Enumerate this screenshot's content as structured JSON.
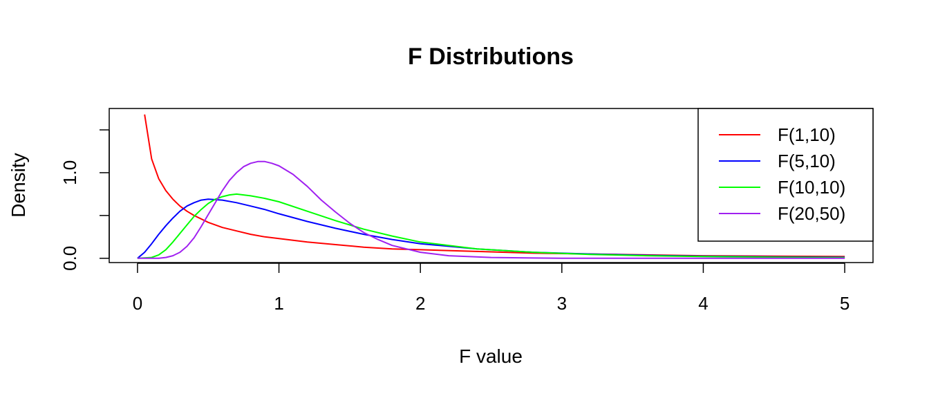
{
  "chart_data": {
    "type": "line",
    "title": "F Distributions",
    "xlabel": "F value",
    "ylabel": "Density",
    "xlim": [
      -0.2,
      5.2
    ],
    "ylim": [
      -0.05,
      1.75
    ],
    "x_ticks": [
      0,
      1,
      2,
      3,
      4,
      5
    ],
    "x_tick_labels": [
      "0",
      "1",
      "2",
      "3",
      "4",
      "5"
    ],
    "y_ticks": [
      0.0,
      0.5,
      1.0,
      1.5
    ],
    "y_tick_labels": [
      "0.0",
      "",
      "1.0",
      ""
    ],
    "grid": false,
    "legend_position": "top-right",
    "x": [
      0.05,
      0.1,
      0.15,
      0.2,
      0.25,
      0.3,
      0.35,
      0.4,
      0.45,
      0.5,
      0.6,
      0.7,
      0.8,
      0.85,
      0.9,
      1.0,
      1.1,
      1.2,
      1.3,
      1.4,
      1.5,
      1.6,
      1.7,
      1.8,
      1.9,
      2.0,
      2.2,
      2.4,
      2.6,
      2.8,
      3.0,
      3.25,
      3.5,
      3.75,
      4.0,
      4.25,
      4.5,
      4.75,
      5.0
    ],
    "series": [
      {
        "name": "F(1,10)",
        "color": "#ff0000",
        "points": [
          [
            0.05,
            1.68
          ],
          [
            0.1,
            1.16
          ],
          [
            0.15,
            0.93
          ],
          [
            0.2,
            0.79
          ],
          [
            0.25,
            0.69
          ],
          [
            0.3,
            0.61
          ],
          [
            0.35,
            0.55
          ],
          [
            0.4,
            0.5
          ],
          [
            0.45,
            0.46
          ],
          [
            0.5,
            0.42
          ],
          [
            0.6,
            0.36
          ],
          [
            0.7,
            0.32
          ],
          [
            0.8,
            0.28
          ],
          [
            0.9,
            0.25
          ],
          [
            1.0,
            0.23
          ],
          [
            1.2,
            0.19
          ],
          [
            1.4,
            0.16
          ],
          [
            1.6,
            0.13
          ],
          [
            1.8,
            0.11
          ],
          [
            2.0,
            0.1
          ],
          [
            2.4,
            0.08
          ],
          [
            2.8,
            0.06
          ],
          [
            3.2,
            0.05
          ],
          [
            3.6,
            0.04
          ],
          [
            4.0,
            0.03
          ],
          [
            4.5,
            0.025
          ],
          [
            5.0,
            0.02
          ]
        ]
      },
      {
        "name": "F(5,10)",
        "color": "#0000ff",
        "points": [
          [
            0.0,
            0.0
          ],
          [
            0.05,
            0.07
          ],
          [
            0.1,
            0.17
          ],
          [
            0.15,
            0.28
          ],
          [
            0.2,
            0.38
          ],
          [
            0.25,
            0.47
          ],
          [
            0.3,
            0.55
          ],
          [
            0.35,
            0.61
          ],
          [
            0.4,
            0.65
          ],
          [
            0.45,
            0.68
          ],
          [
            0.5,
            0.69
          ],
          [
            0.6,
            0.68
          ],
          [
            0.7,
            0.65
          ],
          [
            0.8,
            0.61
          ],
          [
            0.9,
            0.57
          ],
          [
            1.0,
            0.52
          ],
          [
            1.2,
            0.43
          ],
          [
            1.4,
            0.35
          ],
          [
            1.6,
            0.28
          ],
          [
            1.8,
            0.22
          ],
          [
            2.0,
            0.17
          ],
          [
            2.4,
            0.11
          ],
          [
            2.8,
            0.07
          ],
          [
            3.2,
            0.05
          ],
          [
            3.6,
            0.035
          ],
          [
            4.0,
            0.025
          ],
          [
            4.5,
            0.017
          ],
          [
            5.0,
            0.012
          ]
        ]
      },
      {
        "name": "F(10,10)",
        "color": "#00ff00",
        "points": [
          [
            0.0,
            0.0
          ],
          [
            0.1,
            0.01
          ],
          [
            0.15,
            0.04
          ],
          [
            0.2,
            0.1
          ],
          [
            0.25,
            0.19
          ],
          [
            0.3,
            0.29
          ],
          [
            0.35,
            0.39
          ],
          [
            0.4,
            0.49
          ],
          [
            0.45,
            0.57
          ],
          [
            0.5,
            0.64
          ],
          [
            0.55,
            0.69
          ],
          [
            0.6,
            0.72
          ],
          [
            0.65,
            0.74
          ],
          [
            0.7,
            0.75
          ],
          [
            0.8,
            0.73
          ],
          [
            0.9,
            0.7
          ],
          [
            1.0,
            0.66
          ],
          [
            1.2,
            0.55
          ],
          [
            1.4,
            0.44
          ],
          [
            1.6,
            0.34
          ],
          [
            1.8,
            0.26
          ],
          [
            2.0,
            0.19
          ],
          [
            2.4,
            0.11
          ],
          [
            2.8,
            0.07
          ],
          [
            3.2,
            0.045
          ],
          [
            3.6,
            0.03
          ],
          [
            4.0,
            0.02
          ],
          [
            4.5,
            0.012
          ],
          [
            5.0,
            0.008
          ]
        ]
      },
      {
        "name": "F(20,50)",
        "color": "#a020f0",
        "points": [
          [
            0.0,
            0.0
          ],
          [
            0.15,
            0.0
          ],
          [
            0.2,
            0.01
          ],
          [
            0.25,
            0.03
          ],
          [
            0.3,
            0.07
          ],
          [
            0.35,
            0.14
          ],
          [
            0.4,
            0.24
          ],
          [
            0.45,
            0.37
          ],
          [
            0.5,
            0.51
          ],
          [
            0.55,
            0.65
          ],
          [
            0.6,
            0.79
          ],
          [
            0.65,
            0.91
          ],
          [
            0.7,
            1.0
          ],
          [
            0.75,
            1.07
          ],
          [
            0.8,
            1.11
          ],
          [
            0.85,
            1.13
          ],
          [
            0.9,
            1.13
          ],
          [
            0.95,
            1.11
          ],
          [
            1.0,
            1.08
          ],
          [
            1.1,
            0.98
          ],
          [
            1.2,
            0.84
          ],
          [
            1.3,
            0.68
          ],
          [
            1.4,
            0.54
          ],
          [
            1.5,
            0.41
          ],
          [
            1.6,
            0.3
          ],
          [
            1.7,
            0.22
          ],
          [
            1.8,
            0.15
          ],
          [
            2.0,
            0.07
          ],
          [
            2.2,
            0.03
          ],
          [
            2.5,
            0.01
          ],
          [
            3.0,
            0.0
          ],
          [
            5.0,
            0.0
          ]
        ]
      }
    ]
  }
}
